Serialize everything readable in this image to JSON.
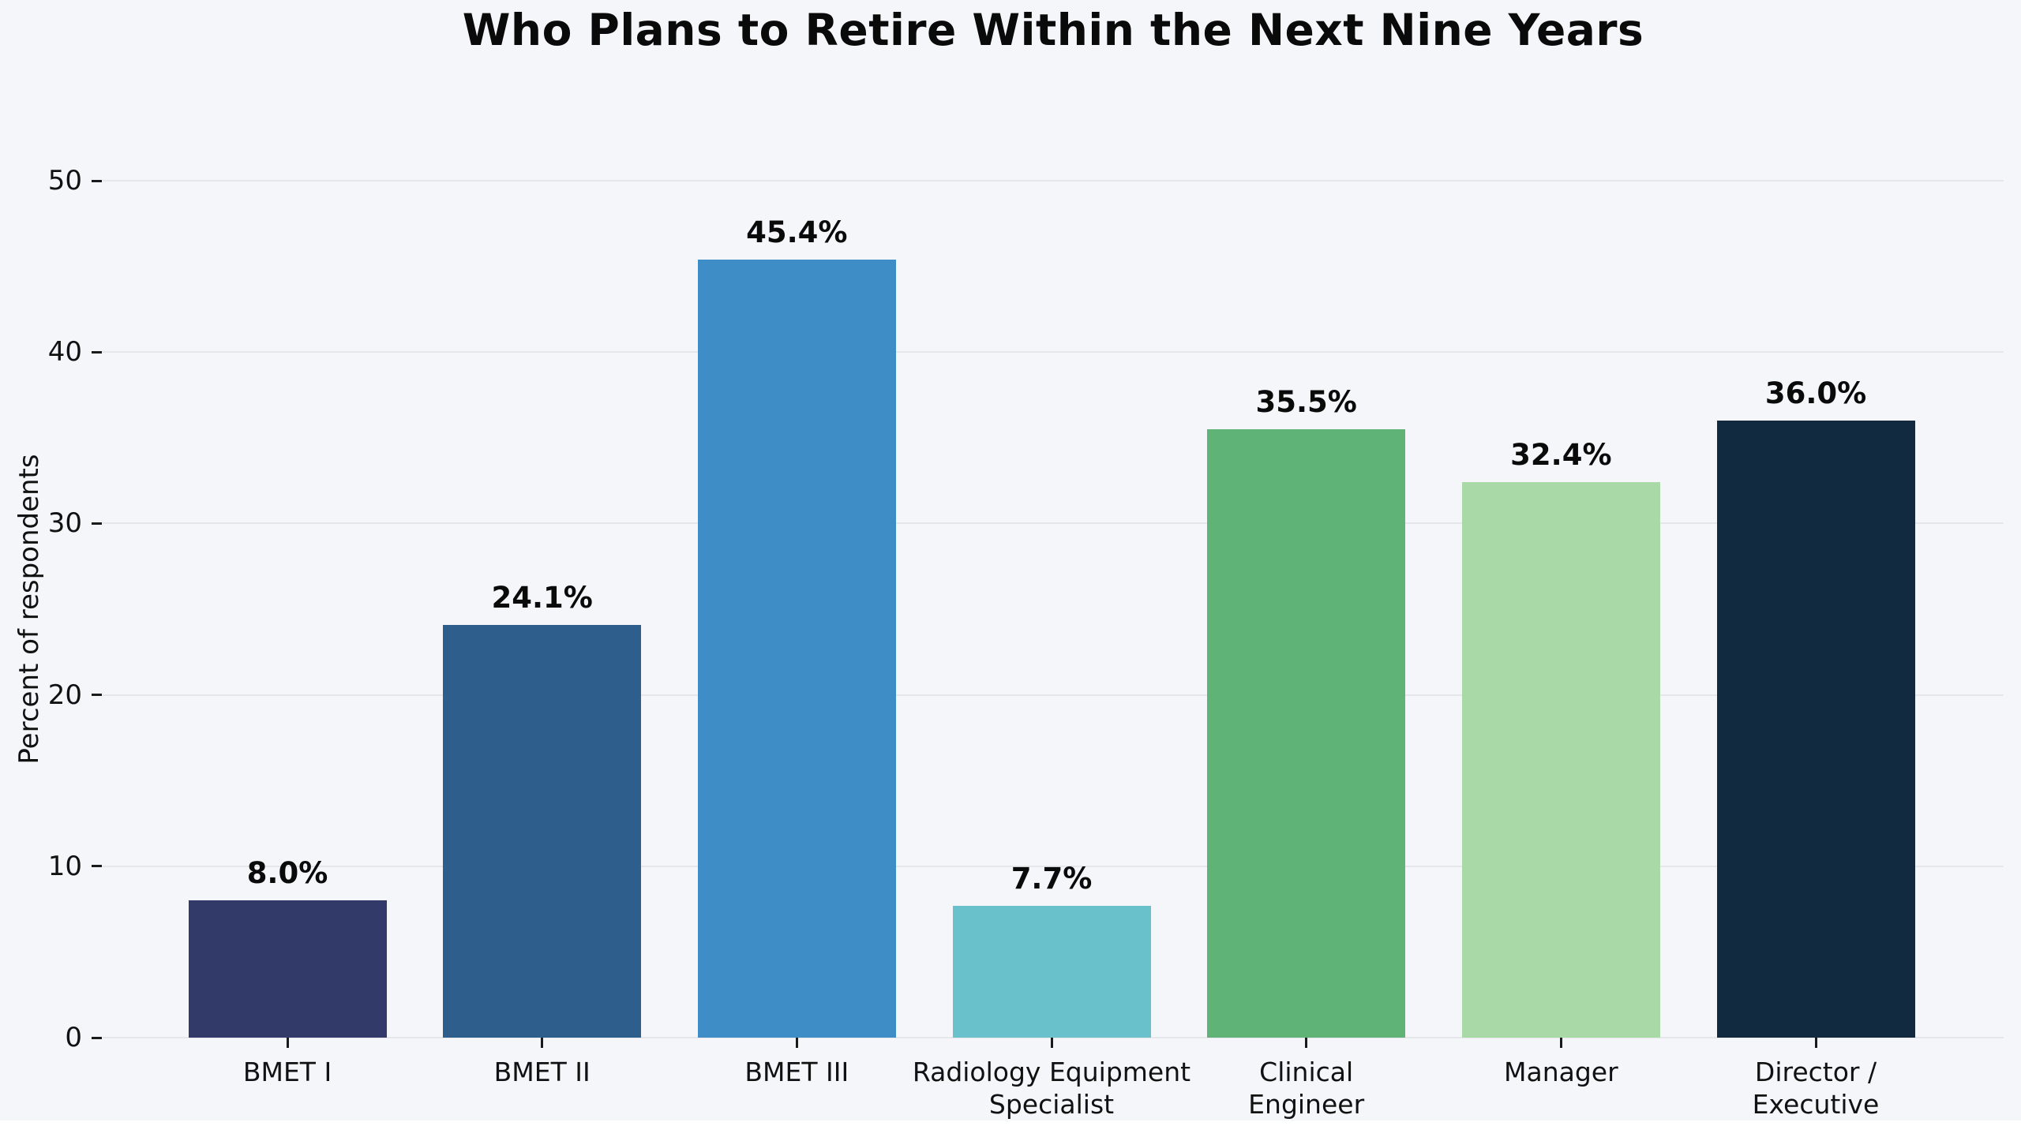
{
  "chart_data": {
    "type": "bar",
    "title": "Who Plans to Retire Within the Next Nine Years",
    "ylabel": "Percent of respondents",
    "xlabel": "",
    "ylim": [
      0,
      50
    ],
    "yticks": [
      0,
      10,
      20,
      30,
      40,
      50
    ],
    "grid": true,
    "legend": false,
    "categories": [
      "BMET I",
      "BMET II",
      "BMET III",
      "Radiology Equipment\nSpecialist",
      "Clinical\nEngineer",
      "Manager",
      "Director /\nExecutive"
    ],
    "values": [
      8.0,
      24.1,
      45.4,
      7.7,
      35.5,
      32.4,
      36.0
    ],
    "value_labels": [
      "8.0%",
      "24.1%",
      "45.4%",
      "7.7%",
      "35.5%",
      "32.4%",
      "36.0%"
    ],
    "bar_colors": [
      "#323A69",
      "#2D5E8C",
      "#3E8DC6",
      "#69C1CB",
      "#5FB377",
      "#A8D9A6",
      "#112A40"
    ],
    "colors": {
      "background": "#F5F6FA",
      "gridline": "#E6E7EB",
      "tick": "#1A1A1A",
      "text": "#0D0D0D",
      "bottom_strip": "#FFFFFF"
    }
  }
}
